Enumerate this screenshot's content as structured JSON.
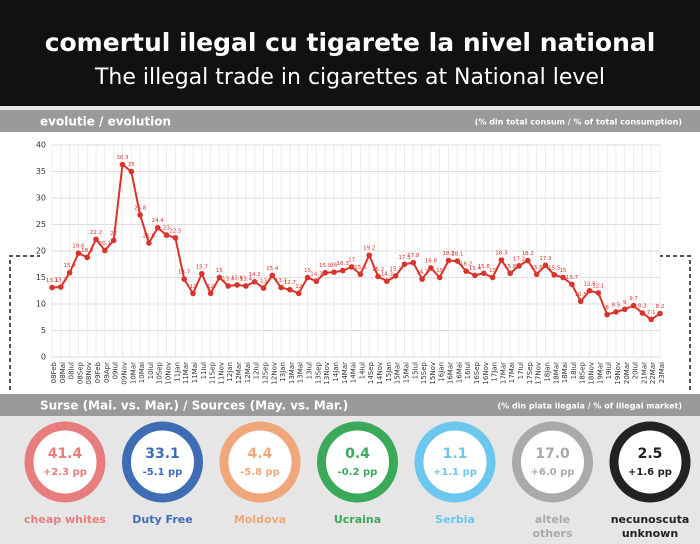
{
  "header": {
    "title": "comertul ilegal cu tigarete la nivel national",
    "subtitle": "The illegal trade in cigarettes at National level"
  },
  "chart_data": {
    "type": "line",
    "title": "evolutie / evolution",
    "subtitle": "(% din total consum / % of total consumption)",
    "categories": [
      "08Feb",
      "08Mai",
      "08Iul",
      "08Sep",
      "08Nov",
      "09Feb",
      "09Apr",
      "09Iul",
      "09Nov",
      "10Mar",
      "10Mai",
      "10Iul",
      "10Sep",
      "10Nov",
      "11Jan",
      "11Mar",
      "11Mai",
      "11Iul",
      "11Sep",
      "11Nov",
      "12Jan",
      "12Mar",
      "12Mai",
      "12Iul",
      "12Sep",
      "12Nov",
      "13Jan",
      "13Mar",
      "13Mai",
      "13Iul",
      "13Sep",
      "13Nov",
      "14Jan",
      "14Mar",
      "14Mai",
      "14Iul",
      "14Sep",
      "14Nov",
      "15Jan",
      "15Mar",
      "15Mai",
      "15Iul",
      "15Sep",
      "15Nov",
      "16Jan",
      "16Mar",
      "16Mai",
      "16Iul",
      "16Sep",
      "16Nov",
      "17Jan",
      "17Mar",
      "17Mai",
      "17Iul",
      "17Sep",
      "17Nov",
      "18Jan",
      "18Mar",
      "18Mai",
      "18Iul",
      "18Sep",
      "18Nov",
      "19Mar",
      "19Iul",
      "19Nov",
      "20Mar",
      "20Iul",
      "21Mar",
      "22Mar",
      "23Mai"
    ],
    "series": [
      {
        "name": "illegal trade",
        "color": "#d9342b",
        "values": [
          13.1,
          13.2,
          15.9,
          19.6,
          18.8,
          22.2,
          20.1,
          22.0,
          36.3,
          35.0,
          26.8,
          21.5,
          24.4,
          23.0,
          22.5,
          14.7,
          12.0,
          15.7,
          12.0,
          15.0,
          13.4,
          13.6,
          13.4,
          14.2,
          13.0,
          15.4,
          13.1,
          12.7,
          12.0,
          15.0,
          14.3,
          15.9,
          16.0,
          16.3,
          17.0,
          15.6,
          19.2,
          15.2,
          14.3,
          15.3,
          17.5,
          17.8,
          14.7,
          16.8,
          15.0,
          18.2,
          18.1,
          16.2,
          15.4,
          15.8,
          15.0,
          18.3,
          15.8,
          17.2,
          18.2,
          15.6,
          17.3,
          15.5,
          15.0,
          13.7,
          10.5,
          12.5,
          12.1,
          8.0,
          8.5,
          9.0,
          9.7,
          8.3,
          7.1,
          8.2
        ]
      }
    ],
    "ylim": [
      0,
      40
    ],
    "yticks": [
      0,
      5,
      10,
      15,
      20,
      25,
      30,
      35,
      40
    ],
    "grid": true
  },
  "sources": {
    "title": "Surse (Mai. vs. Mar.) / Sources (May. vs. Mar.)",
    "subtitle": "(% din piata ilegala / % of illegal market)",
    "items": [
      {
        "value": "41.4",
        "change": "+2.3 pp",
        "name": [
          "cheap whites"
        ],
        "color": "#e87d7d"
      },
      {
        "value": "33.1",
        "change": "-5.1 pp",
        "name": [
          "Duty Free"
        ],
        "color": "#3f6db5"
      },
      {
        "value": "4.4",
        "change": "-5.8 pp",
        "name": [
          "Moldova"
        ],
        "color": "#f0a77c"
      },
      {
        "value": "0.4",
        "change": "-0.2 pp",
        "name": [
          "Ucraina"
        ],
        "color": "#3aaa5a"
      },
      {
        "value": "1.1",
        "change": "+1.1 pp",
        "name": [
          "Serbia"
        ],
        "color": "#6cc7ee"
      },
      {
        "value": "17.0",
        "change": "+6.0 pp",
        "name": [
          "altele",
          "others"
        ],
        "color": "#aaaaaa"
      },
      {
        "value": "2.5",
        "change": "+1.6 pp",
        "name": [
          "necunoscuta",
          "unknown"
        ],
        "color": "#222222"
      }
    ]
  }
}
